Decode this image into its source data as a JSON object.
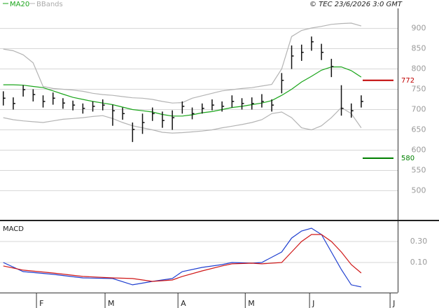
{
  "header": {
    "left_labels": [
      "MA20",
      "BBands"
    ],
    "credit": "© TEC 23/6/2026 3:0 GMT"
  },
  "chart_data": [
    {
      "type": "ohlc",
      "x": [
        1,
        4,
        7,
        10,
        13,
        16,
        19,
        22,
        25,
        28,
        31,
        34,
        37,
        40,
        43,
        46,
        49,
        52,
        55,
        58,
        61,
        64,
        67,
        70,
        73,
        76,
        79,
        82,
        85,
        88,
        91,
        94,
        97,
        100,
        103,
        106,
        109
      ],
      "high": [
        745,
        730,
        760,
        750,
        735,
        742,
        728,
        722,
        715,
        720,
        725,
        712,
        705,
        668,
        690,
        705,
        695,
        698,
        720,
        705,
        715,
        725,
        720,
        735,
        728,
        730,
        738,
        725,
        790,
        858,
        860,
        880,
        862,
        825,
        760,
        715,
        735
      ],
      "low": [
        710,
        700,
        732,
        720,
        705,
        712,
        702,
        698,
        690,
        695,
        698,
        660,
        675,
        620,
        640,
        672,
        655,
        650,
        690,
        676,
        690,
        698,
        695,
        705,
        700,
        700,
        705,
        695,
        740,
        800,
        820,
        845,
        822,
        780,
        685,
        680,
        705
      ],
      "close": [
        728,
        715,
        749,
        737,
        720,
        728,
        716,
        711,
        703,
        708,
        711,
        697,
        690,
        651,
        668,
        690,
        673,
        680,
        708,
        690,
        703,
        711,
        708,
        720,
        715,
        715,
        720,
        711,
        772,
        832,
        841,
        867,
        841,
        806,
        703,
        697,
        720
      ],
      "bar_color": "#111111",
      "series": [
        {
          "name": "MA20",
          "color": "#1aa51a",
          "values": [
            761,
            761,
            760,
            757,
            754,
            746,
            738,
            730,
            725,
            720,
            716,
            712,
            706,
            700,
            697,
            694,
            688,
            684,
            684,
            687,
            692,
            695,
            700,
            705,
            708,
            712,
            716,
            722,
            735,
            750,
            768,
            782,
            797,
            805,
            805,
            796,
            780
          ]
        },
        {
          "name": "BBands",
          "color": "#b4b4b4",
          "values": [
            849,
            845,
            835,
            815,
            757,
            752,
            750,
            748,
            745,
            740,
            737,
            735,
            732,
            729,
            728,
            725,
            720,
            716,
            717,
            728,
            734,
            740,
            746,
            749,
            752,
            754,
            758,
            762,
            800,
            880,
            895,
            901,
            905,
            910,
            912,
            913,
            906
          ],
          "lower": [
            680,
            675,
            672,
            670,
            668,
            672,
            676,
            678,
            680,
            683,
            685,
            678,
            668,
            660,
            655,
            650,
            644,
            642,
            643,
            645,
            647,
            650,
            655,
            659,
            663,
            668,
            675,
            690,
            694,
            680,
            655,
            650,
            660,
            680,
            705,
            690,
            655
          ]
        }
      ],
      "levels": [
        {
          "value": 772,
          "color": "#c00000"
        },
        {
          "value": 580,
          "color": "#008000"
        }
      ],
      "xlim": [
        0,
        120
      ],
      "ylim": [
        430,
        970
      ],
      "yticks": [
        500,
        550,
        600,
        650,
        700,
        750,
        800,
        850,
        900
      ],
      "grid": true
    },
    {
      "type": "line",
      "title": "MACD",
      "x": [
        1,
        7,
        16,
        25,
        34,
        40,
        46,
        52,
        55,
        61,
        67,
        70,
        76,
        79,
        85,
        88,
        91,
        94,
        97,
        100,
        103,
        106,
        109
      ],
      "series": [
        {
          "color": "#1f3fd0",
          "values": [
            0.1,
            0.013,
            -0.013,
            -0.047,
            -0.053,
            -0.113,
            -0.08,
            -0.053,
            0.013,
            0.053,
            0.08,
            0.1,
            0.093,
            0.1,
            0.2,
            0.333,
            0.4,
            0.427,
            0.367,
            0.2,
            0.033,
            -0.113,
            -0.133
          ]
        },
        {
          "color": "#d01818",
          "values": [
            0.067,
            0.027,
            0,
            -0.033,
            -0.047,
            -0.053,
            -0.08,
            -0.067,
            -0.033,
            0.02,
            0.067,
            0.087,
            0.093,
            0.087,
            0.1,
            0.2,
            0.3,
            0.367,
            0.367,
            0.3,
            0.2,
            0.08,
            0
          ]
        }
      ],
      "xlim": [
        0,
        120
      ],
      "ylim": [
        -0.187,
        0.487
      ],
      "yticks": [
        {
          "value": 0.3,
          "label": "0.30"
        },
        {
          "value": 0.1,
          "label": "0.10"
        }
      ],
      "xticks": [
        {
          "value": 11,
          "label": "F"
        },
        {
          "value": 31.7,
          "label": "M"
        },
        {
          "value": 53.7,
          "label": "A"
        },
        {
          "value": 74,
          "label": "M"
        },
        {
          "value": 93.4,
          "label": "J"
        },
        {
          "value": 117.7,
          "label": "J"
        }
      ],
      "grid": true
    }
  ]
}
